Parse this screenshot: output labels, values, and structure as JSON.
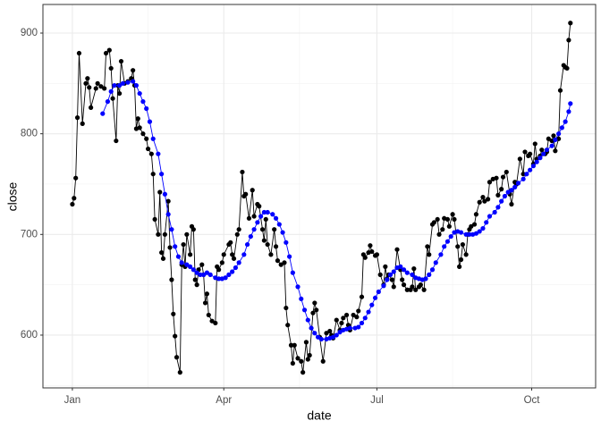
{
  "chart_data": {
    "type": "line",
    "x_label": "date",
    "y_label": "close",
    "xlim": [
      -17.5,
      311
    ],
    "ylim": [
      547.6,
      928.4
    ],
    "xticks": [
      {
        "value": 0,
        "label": "Jan"
      },
      {
        "value": 90,
        "label": "Apr"
      },
      {
        "value": 181,
        "label": "Jul"
      },
      {
        "value": 273,
        "label": "Oct"
      }
    ],
    "yticks": [
      600,
      700,
      800,
      900
    ],
    "grid": true,
    "series": [
      {
        "color": "#000000",
        "x": [
          0,
          1,
          2,
          3,
          4,
          6,
          8,
          9,
          10,
          11,
          14,
          15,
          17,
          19,
          20,
          22,
          23,
          24,
          26,
          27,
          28,
          29,
          31,
          33,
          35,
          36,
          37,
          38,
          39,
          40,
          42,
          44,
          45,
          47,
          48,
          49,
          51,
          52,
          53,
          54,
          55,
          57,
          58,
          59,
          60,
          61,
          62,
          64,
          65,
          66,
          67,
          68,
          70,
          71,
          72,
          73,
          74,
          75,
          77,
          78,
          79,
          80,
          81,
          83,
          85,
          86,
          87,
          89,
          90,
          93,
          94,
          95,
          96,
          98,
          99,
          101,
          102,
          103,
          105,
          107,
          108,
          110,
          111,
          113,
          114,
          115,
          116,
          118,
          120,
          121,
          122,
          124,
          126,
          127,
          128,
          130,
          131,
          132,
          134,
          136,
          137,
          139,
          140,
          141,
          143,
          144,
          145,
          147,
          149,
          151,
          153,
          154,
          155,
          157,
          159,
          160,
          161,
          163,
          164,
          165,
          167,
          169,
          170,
          172,
          173,
          174,
          176,
          177,
          178,
          180,
          181,
          183,
          185,
          186,
          187,
          188,
          190,
          191,
          193,
          195,
          196,
          197,
          199,
          201,
          202,
          203,
          204,
          206,
          207,
          209,
          211,
          212,
          214,
          215,
          217,
          218,
          220,
          221,
          223,
          224,
          226,
          227,
          229,
          230,
          231,
          232,
          234,
          235,
          236,
          237,
          239,
          240,
          242,
          244,
          245,
          247,
          248,
          250,
          252,
          253,
          255,
          256,
          258,
          260,
          261,
          263,
          264,
          266,
          268,
          269,
          271,
          272,
          274,
          275,
          276,
          278,
          279,
          281,
          282,
          283,
          285,
          286,
          287,
          289,
          290,
          292,
          293,
          294,
          295,
          296
        ],
        "values": [
          730,
          736,
          756,
          816,
          880,
          810,
          850,
          855,
          846,
          826,
          845,
          850,
          847,
          845,
          880,
          883,
          865,
          835,
          793,
          848,
          840,
          872,
          850,
          852,
          855,
          863,
          848,
          805,
          815,
          806,
          800,
          795,
          785,
          780,
          760,
          715,
          700,
          742,
          682,
          676,
          700,
          733,
          687,
          655,
          621,
          599,
          578,
          563,
          670,
          690,
          668,
          700,
          680,
          708,
          705,
          655,
          650,
          665,
          670,
          660,
          632,
          641,
          620,
          614,
          612,
          668,
          665,
          672,
          680,
          690,
          692,
          680,
          676,
          700,
          705,
          762,
          738,
          740,
          716,
          744,
          718,
          730,
          728,
          705,
          694,
          715,
          690,
          680,
          705,
          688,
          674,
          670,
          672,
          627,
          610,
          590,
          572,
          590,
          577,
          574,
          563,
          593,
          576,
          580,
          622,
          632,
          625,
          598,
          574,
          602,
          604,
          600,
          597,
          615,
          605,
          612,
          617,
          620,
          610,
          605,
          620,
          618,
          624,
          638,
          680,
          677,
          682,
          689,
          683,
          679,
          680,
          660,
          650,
          668,
          656,
          660,
          655,
          648,
          685,
          665,
          655,
          650,
          645,
          645,
          648,
          666,
          645,
          648,
          650,
          645,
          688,
          680,
          710,
          712,
          715,
          700,
          705,
          716,
          715,
          708,
          720,
          715,
          688,
          668,
          675,
          690,
          680,
          700,
          705,
          708,
          710,
          720,
          732,
          737,
          733,
          735,
          752,
          755,
          756,
          739,
          745,
          757,
          762,
          740,
          730,
          752,
          750,
          775,
          760,
          782,
          778,
          780,
          770,
          790,
          775,
          778,
          784,
          780,
          782,
          795,
          793,
          798,
          783,
          795,
          843,
          868,
          866,
          865,
          893,
          910
        ]
      },
      {
        "color": "#0000ff",
        "x": [
          18,
          21,
          23,
          25,
          28,
          30,
          33,
          36,
          38,
          40,
          42,
          44,
          46,
          48,
          51,
          53,
          55,
          57,
          59,
          61,
          63,
          65,
          68,
          70,
          72,
          74,
          76,
          78,
          80,
          82,
          85,
          87,
          89,
          91,
          93,
          95,
          97,
          99,
          102,
          104,
          106,
          108,
          110,
          112,
          114,
          116,
          119,
          121,
          123,
          125,
          127,
          129,
          131,
          134,
          136,
          138,
          140,
          142,
          144,
          146,
          148,
          151,
          153,
          155,
          157,
          159,
          161,
          163,
          165,
          168,
          170,
          172,
          174,
          176,
          178,
          180,
          182,
          185,
          187,
          189,
          191,
          193,
          195,
          197,
          199,
          202,
          204,
          206,
          208,
          210,
          212,
          214,
          216,
          219,
          221,
          223,
          225,
          227,
          229,
          231,
          234,
          236,
          238,
          240,
          242,
          244,
          246,
          248,
          251,
          253,
          255,
          257,
          259,
          261,
          263,
          265,
          268,
          270,
          272,
          274,
          276,
          278,
          280,
          282,
          285,
          287,
          289,
          291,
          293,
          295,
          296
        ],
        "values": [
          820,
          832,
          842,
          848,
          848,
          850,
          851,
          852,
          848,
          840,
          832,
          825,
          812,
          795,
          780,
          760,
          740,
          720,
          705,
          688,
          678,
          672,
          670,
          668,
          665,
          662,
          660,
          660,
          662,
          660,
          657,
          656,
          656,
          657,
          660,
          663,
          667,
          672,
          680,
          690,
          698,
          705,
          712,
          718,
          722,
          722,
          720,
          716,
          710,
          702,
          692,
          678,
          662,
          648,
          636,
          625,
          615,
          607,
          602,
          598,
          596,
          596,
          597,
          598,
          600,
          603,
          605,
          606,
          607,
          607,
          608,
          612,
          617,
          623,
          630,
          637,
          643,
          649,
          655,
          660,
          663,
          667,
          668,
          665,
          662,
          660,
          657,
          656,
          655,
          656,
          660,
          665,
          672,
          680,
          688,
          693,
          698,
          702,
          703,
          702,
          700,
          700,
          700,
          701,
          703,
          706,
          712,
          718,
          722,
          727,
          733,
          738,
          742,
          744,
          747,
          751,
          755,
          760,
          764,
          768,
          772,
          776,
          780,
          784,
          788,
          794,
          800,
          806,
          812,
          822,
          830
        ]
      }
    ]
  }
}
